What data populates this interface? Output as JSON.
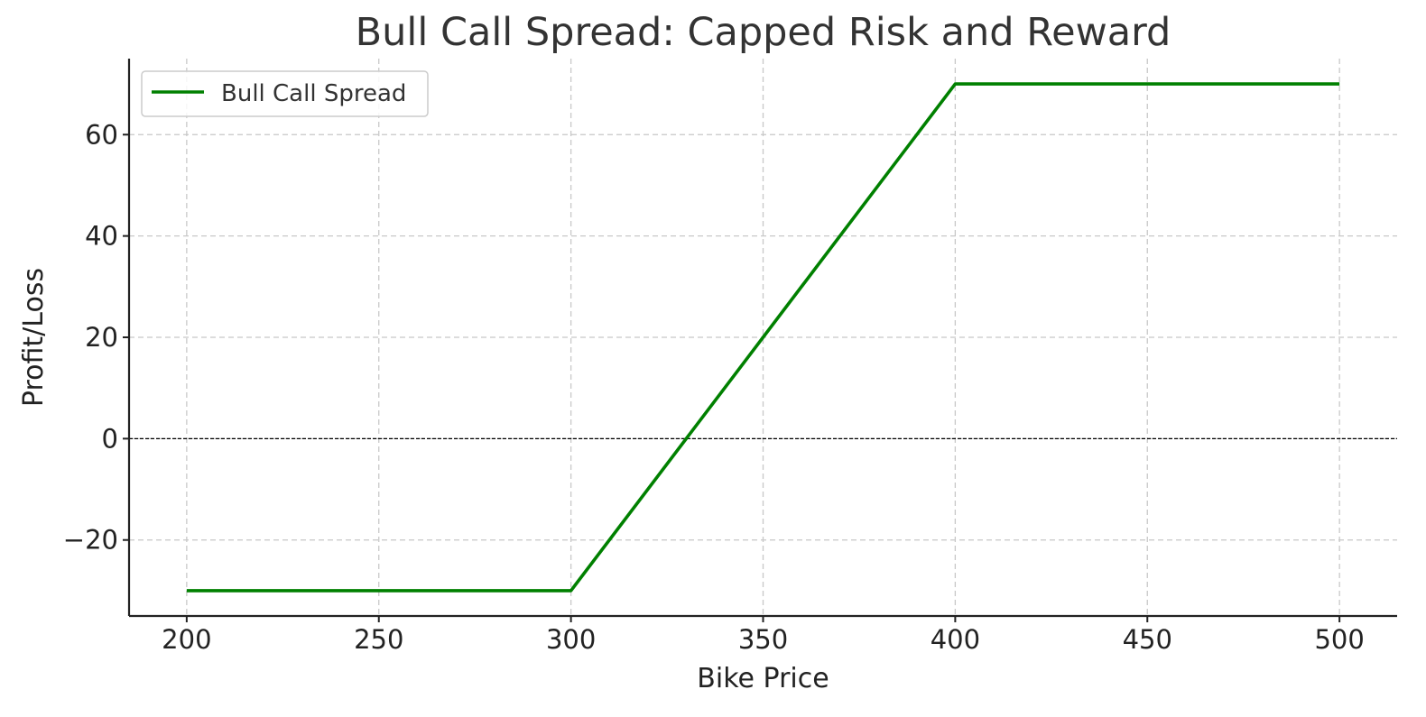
{
  "chart_data": {
    "type": "line",
    "title": "Bull Call Spread: Capped Risk and Reward",
    "xlabel": "Bike Price",
    "ylabel": "Profit/Loss",
    "xlim": [
      185,
      515
    ],
    "ylim": [
      -35,
      75
    ],
    "x_ticks": [
      200,
      250,
      300,
      350,
      400,
      450,
      500
    ],
    "y_ticks": [
      -20,
      0,
      20,
      40,
      60
    ],
    "x_tick_labels": [
      "200",
      "250",
      "300",
      "350",
      "400",
      "450",
      "500"
    ],
    "y_tick_labels": [
      "−20",
      "0",
      "20",
      "40",
      "60"
    ],
    "grid": true,
    "zero_line": true,
    "legend_position": "top-left",
    "series": [
      {
        "name": "Bull Call Spread",
        "color": "#008000",
        "x": [
          200,
          300,
          400,
          500
        ],
        "y": [
          -30,
          -30,
          70,
          70
        ]
      }
    ]
  }
}
